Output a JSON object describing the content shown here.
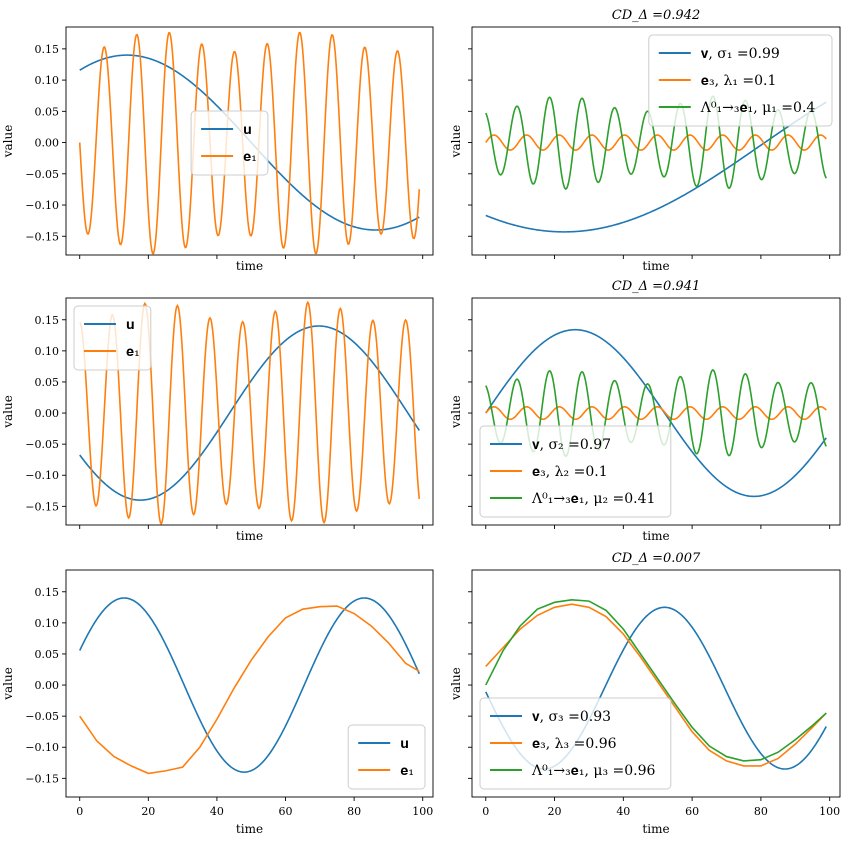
{
  "colors": {
    "u": "#1f77b4",
    "e": "#ff7f0e",
    "lam": "#2ca02c"
  },
  "chart_data": [
    {
      "type": "line",
      "panel": "row1-left",
      "title": "",
      "xlabel": "time",
      "ylabel": "value",
      "xlim": [
        -4,
        103
      ],
      "ylim": [
        -0.18,
        0.185
      ],
      "yticks": [
        0.15,
        0.1,
        0.05,
        0.0,
        -0.05,
        -0.1,
        -0.15
      ],
      "ytick_labels": [
        "0.15",
        "0.10",
        "0.05",
        "0.00",
        "−0.05",
        "−0.10",
        "−0.15"
      ],
      "show_ytick_labels": true,
      "show_xtick_labels": false,
      "legend_loc": "center",
      "series": [
        {
          "name": "u",
          "legend": "𝐮",
          "color": "#1f77b4",
          "shape": "sine",
          "amp": 0.14,
          "period": 145,
          "phase": 0.155,
          "offset": 0
        },
        {
          "name": "e1",
          "legend": "𝐞₁",
          "color": "#ff7f0e",
          "shape": "sine",
          "amp": 0.162,
          "period": 9.5,
          "phase": 0.5,
          "offset": 0,
          "env": 0.1
        }
      ]
    },
    {
      "type": "line",
      "panel": "row1-right",
      "title": "CD_Δ =0.942",
      "xlabel": "time",
      "ylabel": "value",
      "xlim": [
        -4,
        103
      ],
      "ylim": [
        -0.18,
        0.185
      ],
      "yticks": [
        0.15,
        0.1,
        0.05,
        0.0,
        -0.05,
        -0.1,
        -0.15
      ],
      "show_ytick_labels": false,
      "show_xtick_labels": false,
      "legend_loc": "upper right",
      "series": [
        {
          "name": "v",
          "legend": "𝐯, σ₁ =0.99",
          "color": "#1f77b4",
          "shape": "sine",
          "amp": -0.138,
          "period": 228,
          "phase": 0.15,
          "offset": -0.005
        },
        {
          "name": "e3",
          "legend": "𝐞₃, λ₁ =0.1",
          "color": "#ff7f0e",
          "shape": "sine",
          "amp": 0.012,
          "period": 9.5,
          "phase": 0,
          "offset": 0
        },
        {
          "name": "lam",
          "legend": "Λ⁰₁→₃𝐞₁, μ₁ =0.4",
          "color": "#2ca02c",
          "shape": "sine",
          "amp": 0.062,
          "period": 9.5,
          "phase": 0.3,
          "offset": 0,
          "env": 0.2
        }
      ]
    },
    {
      "type": "line",
      "panel": "row2-left",
      "title": "",
      "xlabel": "time",
      "ylabel": "value",
      "xlim": [
        -4,
        103
      ],
      "ylim": [
        -0.18,
        0.185
      ],
      "yticks": [
        0.15,
        0.1,
        0.05,
        0.0,
        -0.05,
        -0.1,
        -0.15
      ],
      "ytick_labels": [
        "0.15",
        "0.10",
        "0.05",
        "0.00",
        "−0.05",
        "−0.10",
        "−0.15"
      ],
      "show_ytick_labels": true,
      "show_xtick_labels": false,
      "legend_loc": "upper left",
      "series": [
        {
          "name": "u",
          "legend": "𝐮",
          "color": "#1f77b4",
          "shape": "sine",
          "amp": -0.14,
          "period": 104,
          "phase": 0.08,
          "offset": 0
        },
        {
          "name": "e1",
          "legend": "𝐞₁",
          "color": "#ff7f0e",
          "shape": "sine",
          "amp": 0.162,
          "period": 9.5,
          "phase": 0.25,
          "offset": 0,
          "env": 0.1
        }
      ]
    },
    {
      "type": "line",
      "panel": "row2-right",
      "title": "CD_Δ =0.941",
      "xlabel": "time",
      "ylabel": "value",
      "xlim": [
        -4,
        103
      ],
      "ylim": [
        -0.18,
        0.185
      ],
      "yticks": [
        0.15,
        0.1,
        0.05,
        0.0,
        -0.05,
        -0.1,
        -0.15
      ],
      "show_ytick_labels": false,
      "show_xtick_labels": false,
      "legend_loc": "lower left",
      "series": [
        {
          "name": "v",
          "legend": "𝐯, σ₂ =0.97",
          "color": "#1f77b4",
          "shape": "sine",
          "amp": 0.134,
          "period": 104,
          "phase": 0.0,
          "offset": 0
        },
        {
          "name": "e3",
          "legend": "𝐞₃, λ₂ =0.1",
          "color": "#ff7f0e",
          "shape": "sine",
          "amp": 0.01,
          "period": 9.5,
          "phase": 0,
          "offset": 0
        },
        {
          "name": "lam",
          "legend": "Λ⁰₁→₃𝐞₁, μ₂ =0.41",
          "color": "#2ca02c",
          "shape": "sine",
          "amp": 0.058,
          "period": 9.5,
          "phase": 0.3,
          "offset": 0,
          "env": 0.2
        }
      ]
    },
    {
      "type": "line",
      "panel": "row3-left",
      "title": "",
      "xlabel": "time",
      "ylabel": "value",
      "xlim": [
        -4,
        103
      ],
      "ylim": [
        -0.18,
        0.185
      ],
      "xticks": [
        0,
        20,
        40,
        60,
        80,
        100
      ],
      "xtick_labels": [
        "0",
        "20",
        "40",
        "60",
        "80",
        "100"
      ],
      "yticks": [
        0.15,
        0.1,
        0.05,
        0.0,
        -0.05,
        -0.1,
        -0.15
      ],
      "ytick_labels": [
        "0.15",
        "0.10",
        "0.05",
        "0.00",
        "−0.05",
        "−0.10",
        "−0.15"
      ],
      "show_ytick_labels": true,
      "show_xtick_labels": true,
      "legend_loc": "lower right",
      "series": [
        {
          "name": "u",
          "legend": "𝐮",
          "color": "#1f77b4",
          "shape": "sine",
          "amp": 0.14,
          "period": 70,
          "phase": 0.065,
          "offset": 0
        },
        {
          "name": "e1",
          "legend": "𝐞₁",
          "color": "#ff7f0e",
          "shape": "points",
          "x": [
            0,
            5,
            10,
            15,
            20,
            25,
            30,
            35,
            40,
            45,
            50,
            55,
            60,
            65,
            70,
            75,
            80,
            85,
            90,
            95,
            99
          ],
          "y": [
            -0.05,
            -0.09,
            -0.115,
            -0.13,
            -0.142,
            -0.138,
            -0.132,
            -0.1,
            -0.055,
            -0.005,
            0.04,
            0.078,
            0.108,
            0.122,
            0.126,
            0.127,
            0.115,
            0.095,
            0.068,
            0.035,
            0.022
          ]
        }
      ]
    },
    {
      "type": "line",
      "panel": "row3-right",
      "title": "CD_Δ =0.007",
      "xlabel": "time",
      "ylabel": "value",
      "xlim": [
        -4,
        103
      ],
      "ylim": [
        -0.18,
        0.185
      ],
      "xticks": [
        0,
        20,
        40,
        60,
        80,
        100
      ],
      "xtick_labels": [
        "0",
        "20",
        "40",
        "60",
        "80",
        "100"
      ],
      "yticks": [
        0.15,
        0.1,
        0.05,
        0.0,
        -0.05,
        -0.1,
        -0.15
      ],
      "show_ytick_labels": false,
      "show_xtick_labels": true,
      "legend_loc": "lower left",
      "series": [
        {
          "name": "v",
          "legend": "𝐯, σ₃ =0.93",
          "color": "#1f77b4",
          "shape": "sine",
          "amp": 0.13,
          "period": 70,
          "phase": 0.0,
          "offset": -0.005,
          "xshift": 34.5
        },
        {
          "name": "e3",
          "legend": "𝐞₃, λ₃ =0.96",
          "color": "#ff7f0e",
          "shape": "points",
          "x": [
            0,
            5,
            10,
            15,
            20,
            25,
            30,
            35,
            40,
            45,
            50,
            55,
            60,
            65,
            70,
            75,
            80,
            85,
            90,
            95,
            99
          ],
          "y": [
            0.03,
            0.06,
            0.09,
            0.112,
            0.125,
            0.13,
            0.125,
            0.11,
            0.082,
            0.045,
            0.005,
            -0.035,
            -0.075,
            -0.105,
            -0.122,
            -0.13,
            -0.13,
            -0.118,
            -0.095,
            -0.068,
            -0.045
          ]
        },
        {
          "name": "lam",
          "legend": "Λ⁰₁→₃𝐞₁, μ₃ =0.96",
          "color": "#2ca02c",
          "shape": "points",
          "x": [
            0,
            5,
            10,
            15,
            20,
            25,
            30,
            35,
            40,
            45,
            50,
            55,
            60,
            65,
            70,
            75,
            80,
            85,
            90,
            95,
            99
          ],
          "y": [
            0.0,
            0.055,
            0.095,
            0.122,
            0.133,
            0.137,
            0.135,
            0.12,
            0.09,
            0.05,
            0.01,
            -0.03,
            -0.068,
            -0.098,
            -0.115,
            -0.122,
            -0.12,
            -0.108,
            -0.088,
            -0.065,
            -0.045
          ]
        }
      ]
    }
  ]
}
